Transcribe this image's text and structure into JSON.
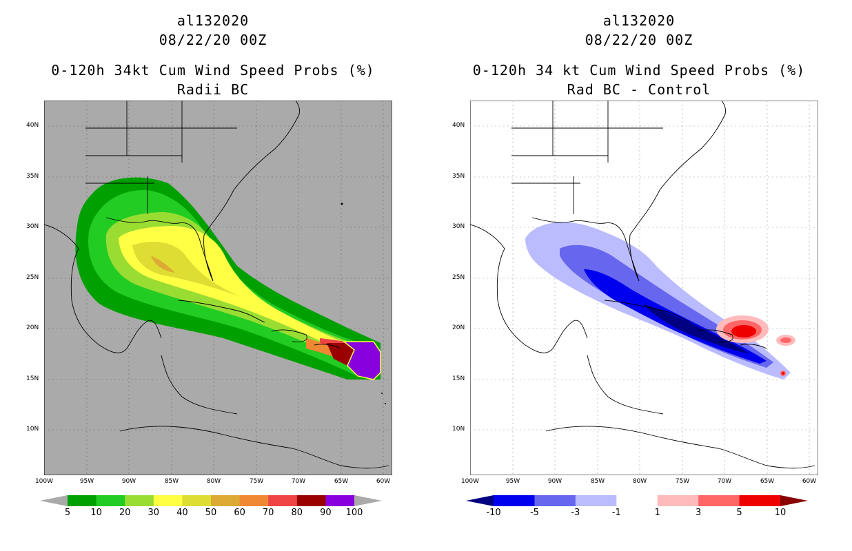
{
  "left": {
    "storm_id": "al132020",
    "datetime": "08/22/20 00Z",
    "product": "0-120h 34kt Cum Wind Speed Probs (%)",
    "subtitle": "Radii BC",
    "colorbar": {
      "labels": [
        "5",
        "10",
        "20",
        "30",
        "40",
        "50",
        "60",
        "70",
        "80",
        "90",
        "100"
      ],
      "colors": [
        "#aaaaaa",
        "#00a000",
        "#22cc22",
        "#99dd33",
        "#ffff44",
        "#dddd33",
        "#ddaa33",
        "#ee8833",
        "#ee4444",
        "#990000",
        "#8800dd",
        "#aaaaaa"
      ]
    }
  },
  "right": {
    "storm_id": "al132020",
    "datetime": "08/22/20 00Z",
    "product": "0-120h 34 kt Cum Wind Speed Probs (%)",
    "subtitle": "Rad BC - Control",
    "colorbar": {
      "labels": [
        "-10",
        "-5",
        "-3",
        "-1",
        "1",
        "3",
        "5",
        "10"
      ],
      "colors": [
        "#000080",
        "#0000ee",
        "#6666ee",
        "#bbbbff",
        "#ffffff",
        "#ffbbbb",
        "#ff6666",
        "#ee0000",
        "#880000"
      ]
    }
  },
  "axes": {
    "lat_labels": [
      "40N",
      "35N",
      "30N",
      "25N",
      "20N",
      "15N",
      "10N"
    ],
    "lon_labels": [
      "100W",
      "95W",
      "90W",
      "85W",
      "80W",
      "75W",
      "70W",
      "65W",
      "60W"
    ],
    "lat_range": [
      5.5,
      42.5
    ],
    "lon_range": [
      -100,
      -59
    ]
  },
  "colors": {
    "land_bg_left": "#aaaaaa",
    "grid": "#999999"
  }
}
